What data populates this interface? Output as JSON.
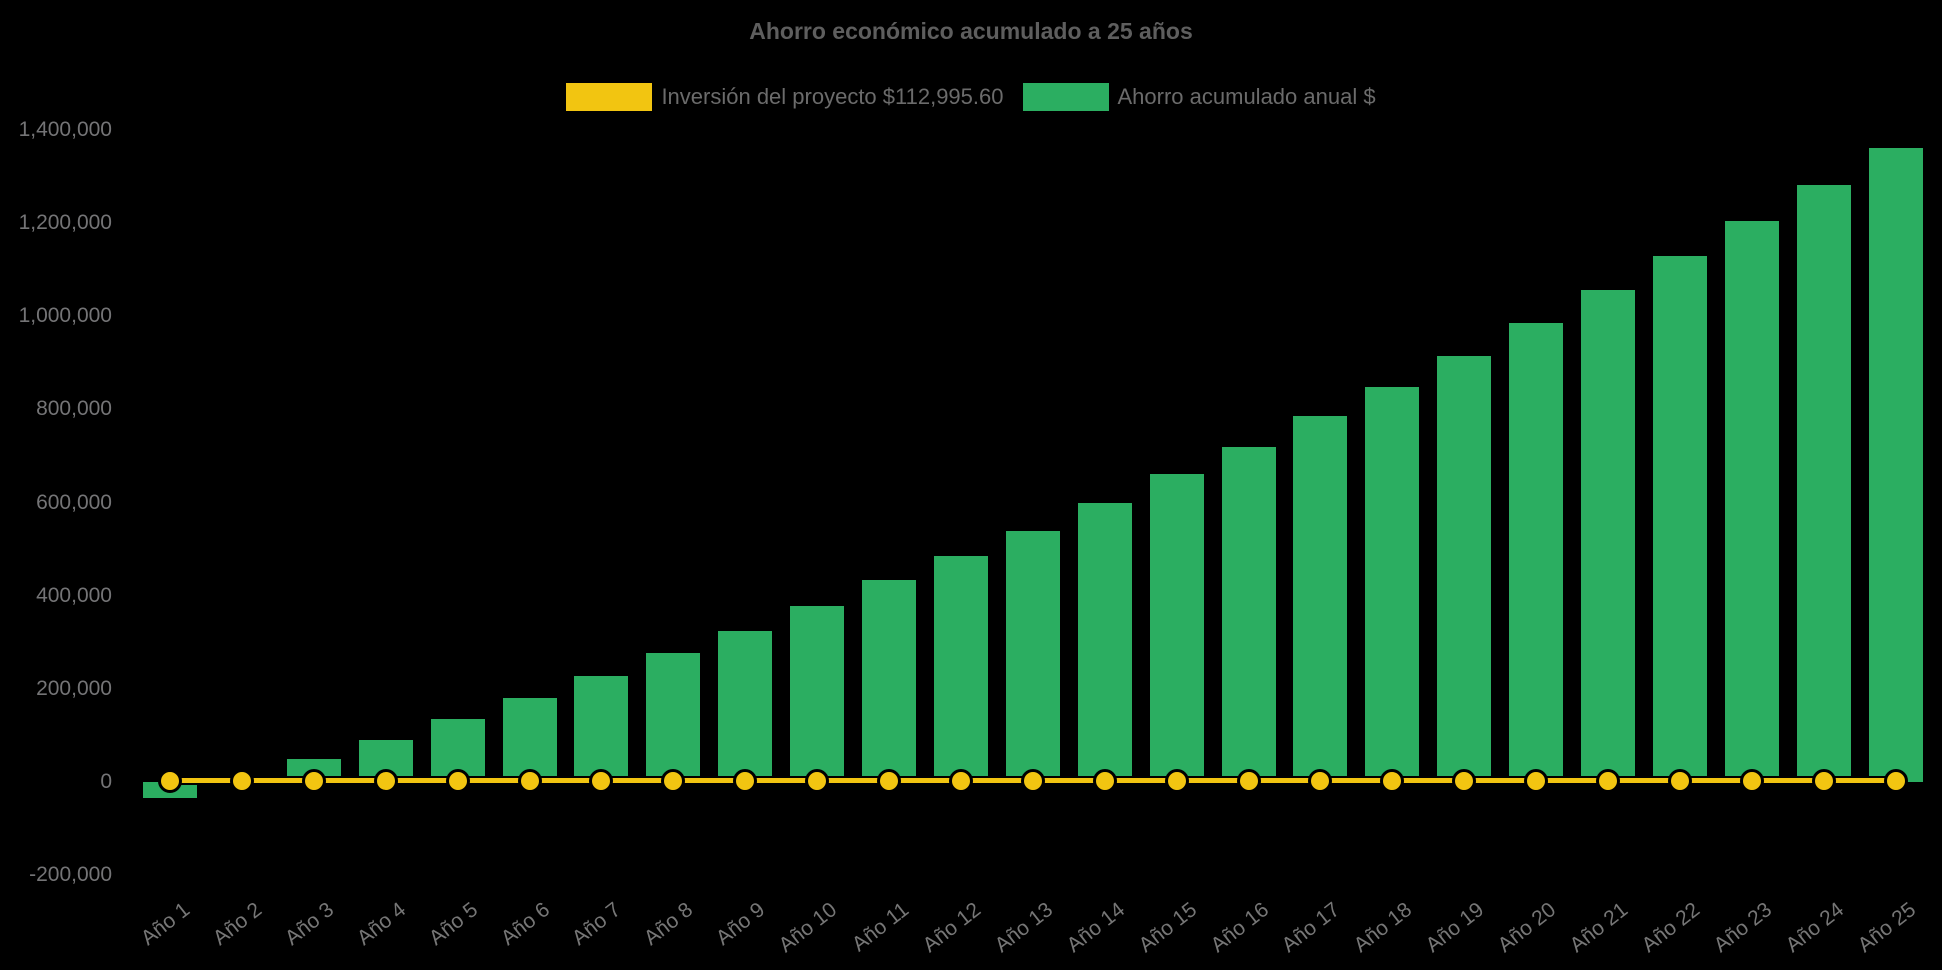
{
  "title": "Ahorro económico acumulado a 25 años",
  "legend": {
    "items": [
      {
        "label": "Inversión del proyecto $112,995.60",
        "color": "#f2c511",
        "series_type": "line"
      },
      {
        "label": "Ahorro acumulado anual $",
        "color": "#2bae61",
        "series_type": "bar"
      }
    ]
  },
  "colors": {
    "background": "#000000",
    "bar_green": "#2bae61",
    "line_yellow": "#f2c511",
    "title_text": "#5e5e5e",
    "legend_text": "#6b6b6b",
    "axis_text": "#747476"
  },
  "chart_data": {
    "type": "bar",
    "title": "Ahorro económico acumulado a 25 años",
    "xlabel": "",
    "ylabel": "",
    "grid": false,
    "legend_position": "top-center",
    "x_tick_rotation_deg": -38,
    "ylim": [
      -200000,
      1400000
    ],
    "y_ticks": [
      {
        "value": 1400000,
        "label": "1,400,000"
      },
      {
        "value": 1200000,
        "label": "1,200,000"
      },
      {
        "value": 1000000,
        "label": "1,000,000"
      },
      {
        "value": 800000,
        "label": "800,000"
      },
      {
        "value": 600000,
        "label": "600,000"
      },
      {
        "value": 400000,
        "label": "400,000"
      },
      {
        "value": 200000,
        "label": "200,000"
      },
      {
        "value": 0,
        "label": "0"
      },
      {
        "value": -200000,
        "label": "-200,000"
      }
    ],
    "categories": [
      "Año 1",
      "Año 2",
      "Año 3",
      "Año 4",
      "Año 5",
      "Año 6",
      "Año 7",
      "Año 8",
      "Año 9",
      "Año 10",
      "Año 11",
      "Año 12",
      "Año 13",
      "Año 14",
      "Año 15",
      "Año 16",
      "Año 17",
      "Año 18",
      "Año 19",
      "Año 20",
      "Año 21",
      "Año 22",
      "Año 23",
      "Año 24",
      "Año 25"
    ],
    "series": [
      {
        "name": "Ahorro acumulado anual $",
        "type": "bar",
        "color": "#2bae61",
        "values": [
          -35000,
          7000,
          50000,
          90000,
          135000,
          180000,
          227000,
          277000,
          325000,
          377000,
          433000,
          486000,
          540000,
          600000,
          661000,
          720000,
          785000,
          848000,
          915000,
          985000,
          1057000,
          1130000,
          1205000,
          1282000,
          1361000
        ]
      },
      {
        "name": "Inversión del proyecto $112,995.60",
        "type": "line",
        "color": "#f2c511",
        "values": [
          0,
          0,
          0,
          0,
          0,
          0,
          0,
          0,
          0,
          0,
          0,
          0,
          0,
          0,
          0,
          0,
          0,
          0,
          0,
          0,
          0,
          0,
          0,
          0,
          0
        ]
      }
    ]
  }
}
